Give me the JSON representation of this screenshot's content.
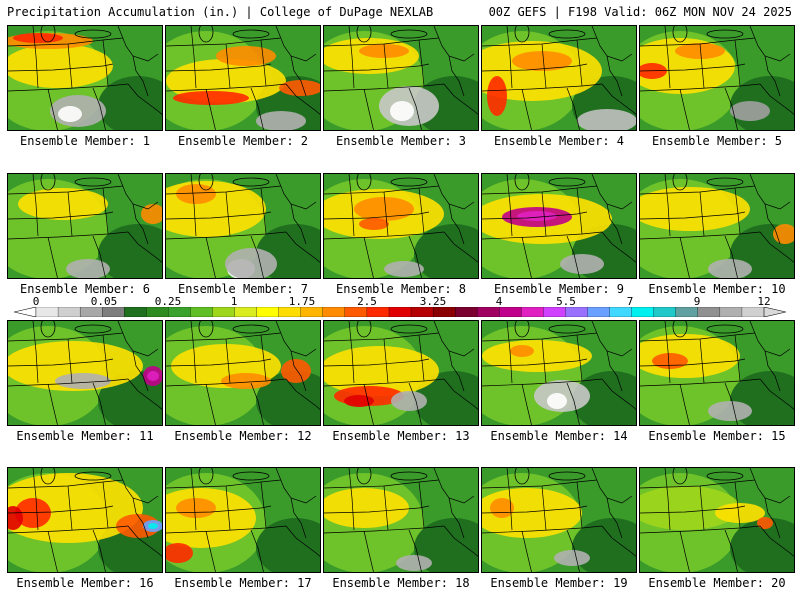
{
  "header": {
    "left_title": "Precipitation Accumulation (in.) | College of DuPage NEXLAB",
    "right_title": "00Z GEFS | F198 Valid: 06Z MON NOV 24 2025"
  },
  "colorbar": {
    "labels": [
      "0",
      "0.05",
      "0.25",
      "1",
      "1.75",
      "2.5",
      "3.25",
      "4",
      "5.5",
      "7",
      "9",
      "12"
    ],
    "colors": [
      "#e8e8e8",
      "#cfcfcf",
      "#a8a8a8",
      "#7e7e7e",
      "#1f6f1f",
      "#2e8b22",
      "#3aa12c",
      "#5fbf24",
      "#9ed61c",
      "#d8ec20",
      "#ffff00",
      "#ffdd00",
      "#ffb400",
      "#ff8c00",
      "#ff5a00",
      "#ff2a00",
      "#e00000",
      "#b40000",
      "#8a0000",
      "#7a0030",
      "#a00060",
      "#c0008a",
      "#e020c0",
      "#d040ff",
      "#9a70ff",
      "#6aa0ff",
      "#40d8ff",
      "#00f0f0",
      "#20c8c8",
      "#60a0a0",
      "#909090",
      "#b0b0b0",
      "#d0d0d0"
    ]
  },
  "members": [
    {
      "label": "Ensemble Member: 1"
    },
    {
      "label": "Ensemble Member: 2"
    },
    {
      "label": "Ensemble Member: 3"
    },
    {
      "label": "Ensemble Member: 4"
    },
    {
      "label": "Ensemble Member: 5"
    },
    {
      "label": "Ensemble Member: 6"
    },
    {
      "label": "Ensemble Member: 7"
    },
    {
      "label": "Ensemble Member: 8"
    },
    {
      "label": "Ensemble Member: 9"
    },
    {
      "label": "Ensemble Member: 10"
    },
    {
      "label": "Ensemble Member: 11"
    },
    {
      "label": "Ensemble Member: 12"
    },
    {
      "label": "Ensemble Member: 13"
    },
    {
      "label": "Ensemble Member: 14"
    },
    {
      "label": "Ensemble Member: 15"
    },
    {
      "label": "Ensemble Member: 16"
    },
    {
      "label": "Ensemble Member: 17"
    },
    {
      "label": "Ensemble Member: 18"
    },
    {
      "label": "Ensemble Member: 19"
    },
    {
      "label": "Ensemble Member: 20"
    }
  ]
}
